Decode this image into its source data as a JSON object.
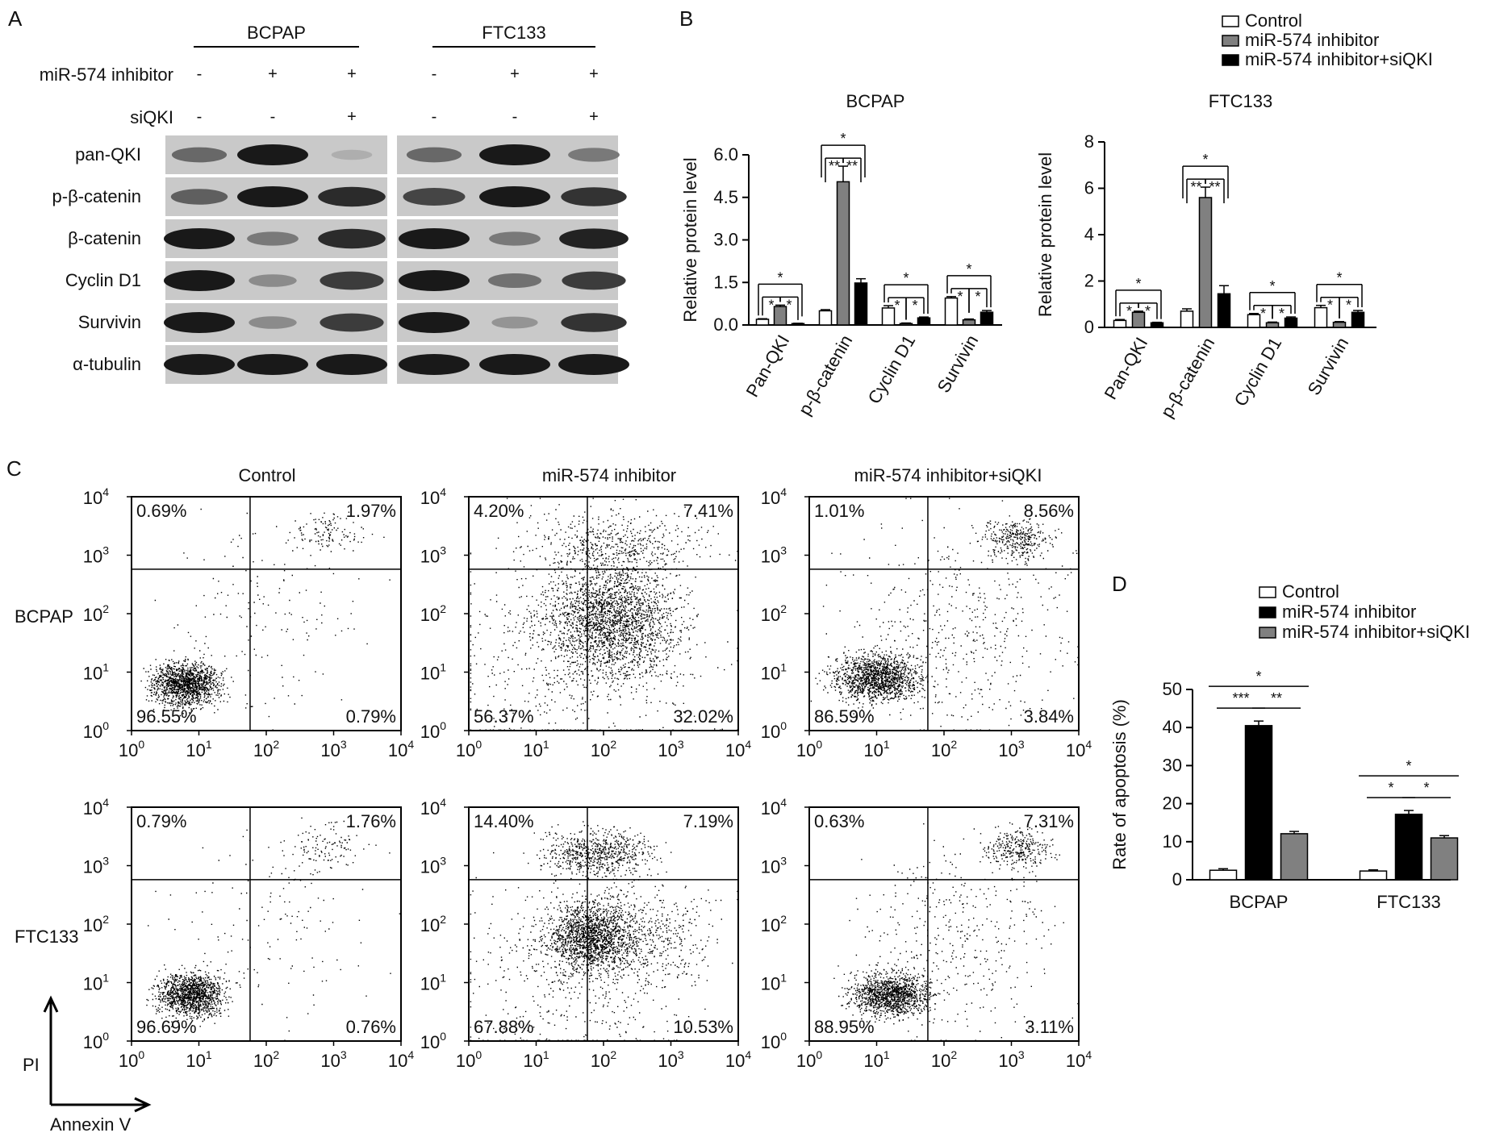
{
  "panel_labels": {
    "a": "A",
    "b": "B",
    "c": "C",
    "d": "D"
  },
  "western_blot": {
    "cell_lines": [
      "BCPAP",
      "FTC133"
    ],
    "treatment_rows": [
      {
        "label": "miR-574 inhibitor",
        "signs": [
          "-",
          "+",
          "+",
          "-",
          "+",
          "+"
        ]
      },
      {
        "label": "siQKI",
        "signs": [
          "-",
          "-",
          "+",
          "-",
          "-",
          "+"
        ]
      }
    ],
    "proteins": [
      "pan-QKI",
      "p-β-catenin",
      "β-catenin",
      "Cyclin D1",
      "Survivin",
      "α-tubulin"
    ],
    "band_intensity": [
      [
        0.55,
        1.0,
        0.15,
        0.55,
        1.0,
        0.45
      ],
      [
        0.6,
        1.0,
        0.9,
        0.75,
        1.0,
        0.85
      ],
      [
        1.0,
        0.45,
        0.9,
        1.0,
        0.45,
        0.95
      ],
      [
        1.0,
        0.35,
        0.8,
        1.0,
        0.5,
        0.8
      ],
      [
        1.0,
        0.35,
        0.8,
        1.0,
        0.3,
        0.85
      ],
      [
        1.0,
        1.0,
        1.0,
        1.0,
        1.0,
        1.0
      ]
    ]
  },
  "legend_b": [
    "Control",
    "miR-574 inhibitor",
    "miR-574 inhibitor+siQKI"
  ],
  "legend_d": [
    "Control",
    "miR-574 inhibitor",
    "miR-574 inhibitor+siQKI"
  ],
  "colors": {
    "control": "#ffffff",
    "inhibitor_b": "#808080",
    "sirna_b": "#000000",
    "inhibitor_d": "#000000",
    "sirna_d": "#808080"
  },
  "flow": {
    "column_titles": [
      "Control",
      "miR-574 inhibitor",
      "miR-574 inhibitor+siQKI"
    ],
    "row_labels": [
      "BCPAP",
      "FTC133"
    ],
    "axis_y_label": "PI",
    "axis_x_label": "Annexin V",
    "tick_labels": [
      "10",
      "10",
      "10",
      "10",
      "10"
    ],
    "tick_exponents": [
      "0",
      "1",
      "2",
      "3",
      "4"
    ],
    "quadrants": [
      [
        [
          "0.69%",
          "1.97%",
          "96.55%",
          "0.79%"
        ],
        [
          "4.20%",
          "7.41%",
          "56.37%",
          "32.02%"
        ],
        [
          "1.01%",
          "8.56%",
          "86.59%",
          "3.84%"
        ]
      ],
      [
        [
          "0.79%",
          "1.76%",
          "96.69%",
          "0.76%"
        ],
        [
          "14.40%",
          "7.19%",
          "67.88%",
          "10.53%"
        ],
        [
          "0.63%",
          "7.31%",
          "88.95%",
          "3.11%"
        ]
      ]
    ]
  },
  "chart_data": [
    {
      "type": "bar",
      "title": "BCPAP",
      "ylabel": "Relative protein level",
      "categories": [
        "Pan-QKI",
        "p-β-catenin",
        "Cyclin D1",
        "Survivin"
      ],
      "ylim": [
        0,
        6
      ],
      "yticks": [
        "0.0",
        "1.5",
        "3.0",
        "4.5",
        "6.0"
      ],
      "series": [
        {
          "name": "Control",
          "values": [
            0.2,
            0.5,
            0.6,
            0.95
          ]
        },
        {
          "name": "miR-574 inhibitor",
          "values": [
            0.65,
            5.05,
            0.05,
            0.18
          ]
        },
        {
          "name": "miR-574 inhibitor+siQKI",
          "values": [
            0.05,
            1.48,
            0.25,
            0.45
          ]
        }
      ],
      "errors": [
        [
          0.02,
          0.04,
          0.08,
          0.05
        ],
        [
          0.05,
          0.55,
          0.02,
          0.03
        ],
        [
          0.01,
          0.15,
          0.03,
          0.06
        ]
      ],
      "significance": [
        {
          "cat": 0,
          "lows": [
            "*",
            "*"
          ],
          "top": "*"
        },
        {
          "cat": 1,
          "lows": [
            "**",
            "**"
          ],
          "top": "*"
        },
        {
          "cat": 2,
          "lows": [
            "*",
            "*"
          ],
          "top": "*"
        },
        {
          "cat": 3,
          "lows": [
            "*",
            "*"
          ],
          "top": "*"
        }
      ]
    },
    {
      "type": "bar",
      "title": "FTC133",
      "ylabel": "Relative protein level",
      "categories": [
        "Pan-QKI",
        "p-β-catenin",
        "Cyclin D1",
        "Survivin"
      ],
      "ylim": [
        0,
        8
      ],
      "yticks": [
        "0",
        "2",
        "4",
        "6",
        "8"
      ],
      "series": [
        {
          "name": "Control",
          "values": [
            0.3,
            0.7,
            0.55,
            0.85
          ]
        },
        {
          "name": "miR-574 inhibitor",
          "values": [
            0.65,
            5.6,
            0.2,
            0.22
          ]
        },
        {
          "name": "miR-574 inhibitor+siQKI",
          "values": [
            0.2,
            1.45,
            0.4,
            0.65
          ]
        }
      ],
      "errors": [
        [
          0.04,
          0.1,
          0.05,
          0.1
        ],
        [
          0.05,
          0.45,
          0.03,
          0.03
        ],
        [
          0.02,
          0.35,
          0.05,
          0.08
        ]
      ],
      "significance": [
        {
          "cat": 0,
          "lows": [
            "*",
            "*"
          ],
          "top": "*"
        },
        {
          "cat": 1,
          "lows": [
            "**",
            "**"
          ],
          "top": "*"
        },
        {
          "cat": 2,
          "lows": [
            "*",
            "*"
          ],
          "top": "*"
        },
        {
          "cat": 3,
          "lows": [
            "*",
            "*"
          ],
          "top": "*"
        }
      ]
    },
    {
      "type": "bar",
      "title": "",
      "ylabel": "Rate of apoptosis (%)",
      "categories": [
        "BCPAP",
        "FTC133"
      ],
      "ylim": [
        0,
        50
      ],
      "yticks": [
        "0",
        "10",
        "20",
        "30",
        "40",
        "50"
      ],
      "series": [
        {
          "name": "Control",
          "values": [
            2.5,
            2.3
          ]
        },
        {
          "name": "miR-574 inhibitor",
          "values": [
            40.5,
            17.2
          ]
        },
        {
          "name": "miR-574 inhibitor+siQKI",
          "values": [
            12.1,
            11.0
          ]
        }
      ],
      "errors": [
        [
          0.4,
          0.3
        ],
        [
          1.2,
          1.0
        ],
        [
          0.6,
          0.6
        ]
      ],
      "significance": [
        {
          "cat": 0,
          "lows": [
            "***",
            "**"
          ],
          "top": "*"
        },
        {
          "cat": 1,
          "lows": [
            "*",
            "*"
          ],
          "top": "*"
        }
      ]
    }
  ]
}
